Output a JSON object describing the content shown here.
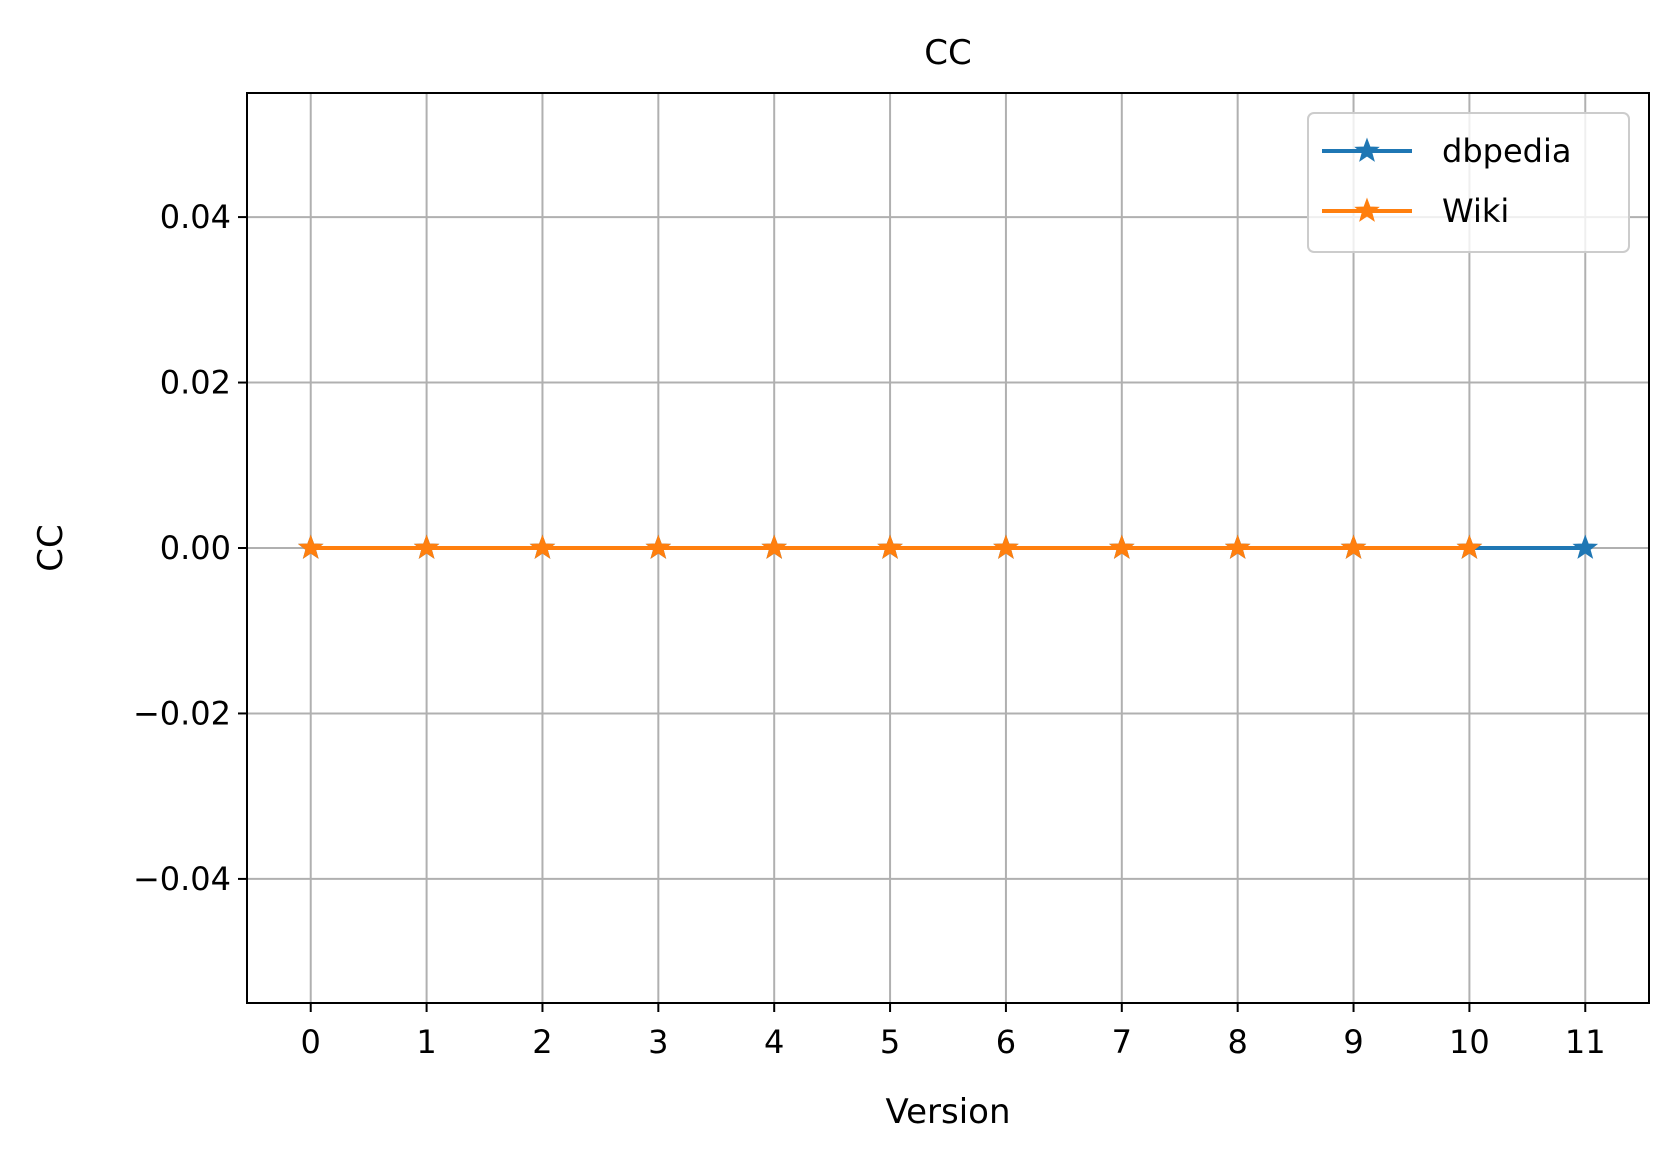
{
  "chart_data": {
    "type": "line",
    "title": "CC",
    "xlabel": "Version",
    "ylabel": "CC",
    "x_ticks": [
      "0",
      "1",
      "2",
      "3",
      "4",
      "5",
      "6",
      "7",
      "8",
      "9",
      "10",
      "11"
    ],
    "y_ticks": [
      "−0.04",
      "−0.02",
      "0.00",
      "0.02",
      "0.04"
    ],
    "y_tick_values": [
      -0.04,
      -0.02,
      0.0,
      0.02,
      0.04
    ],
    "xlim": [
      -0.55,
      11.55
    ],
    "ylim": [
      -0.055,
      0.055
    ],
    "grid": true,
    "legend_position": "upper right",
    "marker": "star",
    "series": [
      {
        "name": "dbpedia",
        "color": "#1f77b4",
        "x": [
          0,
          1,
          2,
          3,
          4,
          5,
          6,
          7,
          8,
          9,
          10,
          11
        ],
        "values": [
          0,
          0,
          0,
          0,
          0,
          0,
          0,
          0,
          0,
          0,
          0,
          0
        ]
      },
      {
        "name": "Wiki",
        "color": "#ff7f0e",
        "x": [
          0,
          1,
          2,
          3,
          4,
          5,
          6,
          7,
          8,
          9,
          10
        ],
        "values": [
          0,
          0,
          0,
          0,
          0,
          0,
          0,
          0,
          0,
          0,
          0
        ]
      }
    ]
  }
}
